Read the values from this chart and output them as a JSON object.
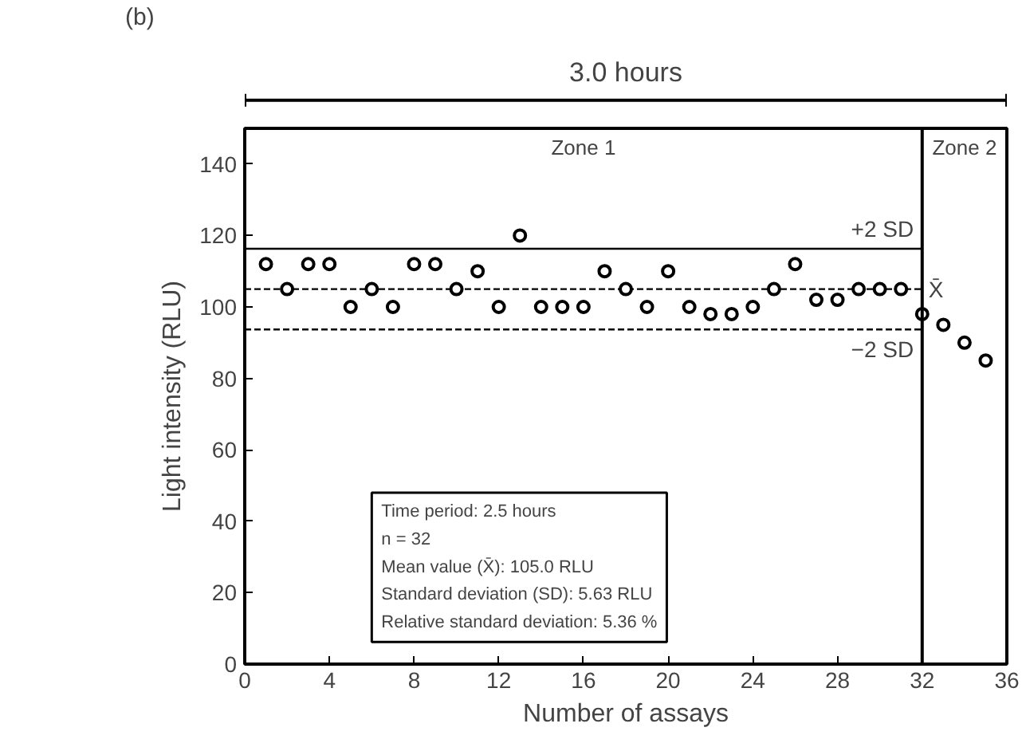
{
  "chart_data": {
    "type": "scatter",
    "title": "3.0 hours",
    "xlabel": "Number of assays",
    "ylabel": "Light intensity (RLU)",
    "x": [
      1,
      2,
      3,
      4,
      5,
      6,
      7,
      8,
      9,
      10,
      11,
      12,
      13,
      14,
      15,
      16,
      17,
      18,
      19,
      20,
      21,
      22,
      23,
      24,
      25,
      26,
      27,
      28,
      29,
      30,
      31,
      32,
      33,
      34,
      35
    ],
    "series": [
      {
        "color": "#000000",
        "values": [
          112,
          105,
          112,
          112,
          100,
          105,
          100,
          112,
          112,
          105,
          110,
          100,
          120,
          100,
          100,
          100,
          110,
          105,
          100,
          110,
          100,
          98,
          98,
          100,
          105,
          112,
          102,
          102,
          105,
          105,
          105,
          98,
          95,
          90,
          85
        ]
      }
    ],
    "xlim": [
      0,
      36
    ],
    "ylim": [
      0,
      150
    ],
    "xticks": [
      0,
      4,
      8,
      12,
      16,
      20,
      24,
      28,
      32,
      36
    ],
    "yticks": [
      0,
      20,
      40,
      60,
      80,
      100,
      120,
      140
    ],
    "ref_lines": [
      {
        "axis": "y",
        "value": 116.3,
        "label": "+2 SD",
        "line_style": "solid"
      },
      {
        "axis": "y",
        "value": 105.0,
        "label": "X̄",
        "line_style": "dashed"
      },
      {
        "axis": "y",
        "value": 93.7,
        "label": "−2 SD",
        "line_style": "dashed"
      },
      {
        "axis": "x",
        "value": 32,
        "line_style": "solid"
      }
    ],
    "annotations": [
      "(b)",
      "Zone 1",
      "Zone 2",
      "Time period: 2.5 hours",
      "n = 32",
      "Mean value (X̄): 105.0 RLU",
      "Standard deviation (SD): 5.63 RLU",
      "Relative standard deviation: 5.36 %"
    ],
    "marker": "circle",
    "grid": false
  }
}
